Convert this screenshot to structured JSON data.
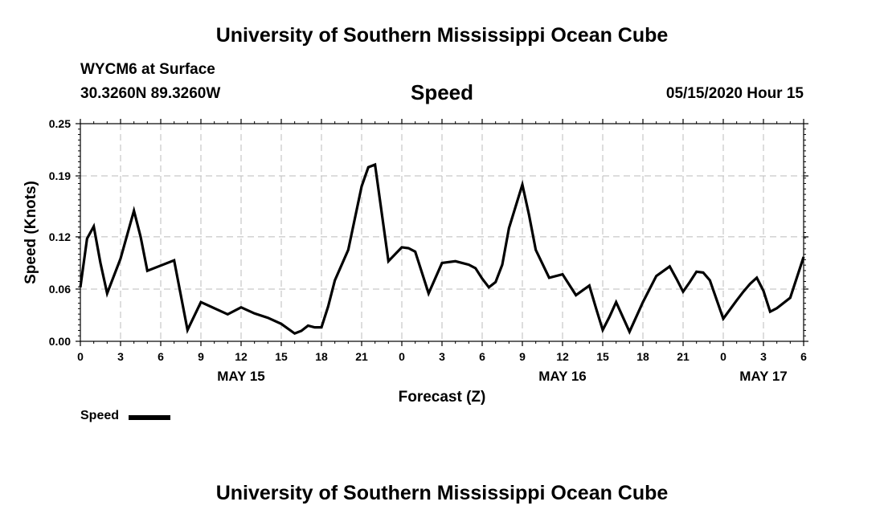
{
  "header": {
    "title": "University of Southern Mississippi Ocean Cube",
    "station": "WYCM6 at Surface",
    "location": "30.3260N 89.3260W",
    "plot_title": "Speed",
    "timestamp": "05/15/2020 Hour 15"
  },
  "footer": {
    "title": "University of Southern Mississippi Ocean Cube"
  },
  "legend": {
    "label": "Speed",
    "color": "#000000"
  },
  "chart_data": {
    "type": "line",
    "title": "Speed",
    "xlabel": "Forecast (Z)",
    "ylabel": "Speed (Knots)",
    "xlim": [
      0,
      54
    ],
    "ylim": [
      0,
      0.25
    ],
    "yticks": [
      "0.00",
      "0.06",
      "0.12",
      "0.19",
      "0.25"
    ],
    "xticks": [
      {
        "x": 0,
        "label": "0"
      },
      {
        "x": 3,
        "label": "3"
      },
      {
        "x": 6,
        "label": "6"
      },
      {
        "x": 9,
        "label": "9"
      },
      {
        "x": 12,
        "label": "12"
      },
      {
        "x": 15,
        "label": "15"
      },
      {
        "x": 18,
        "label": "18"
      },
      {
        "x": 21,
        "label": "21"
      },
      {
        "x": 24,
        "label": "0"
      },
      {
        "x": 27,
        "label": "3"
      },
      {
        "x": 30,
        "label": "6"
      },
      {
        "x": 33,
        "label": "9"
      },
      {
        "x": 36,
        "label": "12"
      },
      {
        "x": 39,
        "label": "15"
      },
      {
        "x": 42,
        "label": "18"
      },
      {
        "x": 45,
        "label": "21"
      },
      {
        "x": 48,
        "label": "0"
      },
      {
        "x": 51,
        "label": "3"
      },
      {
        "x": 54,
        "label": "6"
      }
    ],
    "day_labels": [
      {
        "x": 12,
        "label": "MAY 15"
      },
      {
        "x": 36,
        "label": "MAY 16"
      },
      {
        "x": 51,
        "label": "MAY 17"
      }
    ],
    "grid": true,
    "series": [
      {
        "name": "Speed",
        "color": "#000000",
        "x": [
          0,
          0.5,
          1,
          1.5,
          2,
          3,
          4,
          4.5,
          5,
          6,
          7,
          8,
          9,
          10,
          11,
          12,
          13,
          14,
          15,
          16,
          16.5,
          17,
          17.5,
          18,
          18.5,
          19,
          20,
          21,
          21.5,
          22,
          23,
          24,
          24.5,
          25,
          26,
          27,
          28,
          29,
          29.5,
          30,
          30.5,
          31,
          31.5,
          32,
          33,
          33.5,
          34,
          35,
          36,
          37,
          38,
          38.5,
          39,
          39.5,
          40,
          41,
          42,
          43,
          44,
          44.5,
          45,
          45.5,
          46,
          46.5,
          47,
          48,
          49,
          49.5,
          50,
          50.5,
          51,
          51.5,
          52,
          53,
          54
        ],
        "y": [
          0.062,
          0.118,
          0.132,
          0.09,
          0.055,
          0.095,
          0.15,
          0.12,
          0.081,
          0.087,
          0.093,
          0.013,
          0.045,
          0.038,
          0.031,
          0.039,
          0.032,
          0.027,
          0.02,
          0.009,
          0.012,
          0.018,
          0.016,
          0.016,
          0.04,
          0.07,
          0.105,
          0.178,
          0.2,
          0.203,
          0.092,
          0.108,
          0.107,
          0.103,
          0.055,
          0.09,
          0.092,
          0.088,
          0.084,
          0.072,
          0.062,
          0.068,
          0.088,
          0.13,
          0.18,
          0.145,
          0.105,
          0.073,
          0.077,
          0.053,
          0.064,
          0.038,
          0.013,
          0.028,
          0.045,
          0.011,
          0.045,
          0.075,
          0.086,
          0.072,
          0.057,
          0.068,
          0.08,
          0.079,
          0.07,
          0.026,
          0.047,
          0.057,
          0.066,
          0.073,
          0.058,
          0.034,
          0.038,
          0.05,
          0.097
        ]
      }
    ]
  }
}
